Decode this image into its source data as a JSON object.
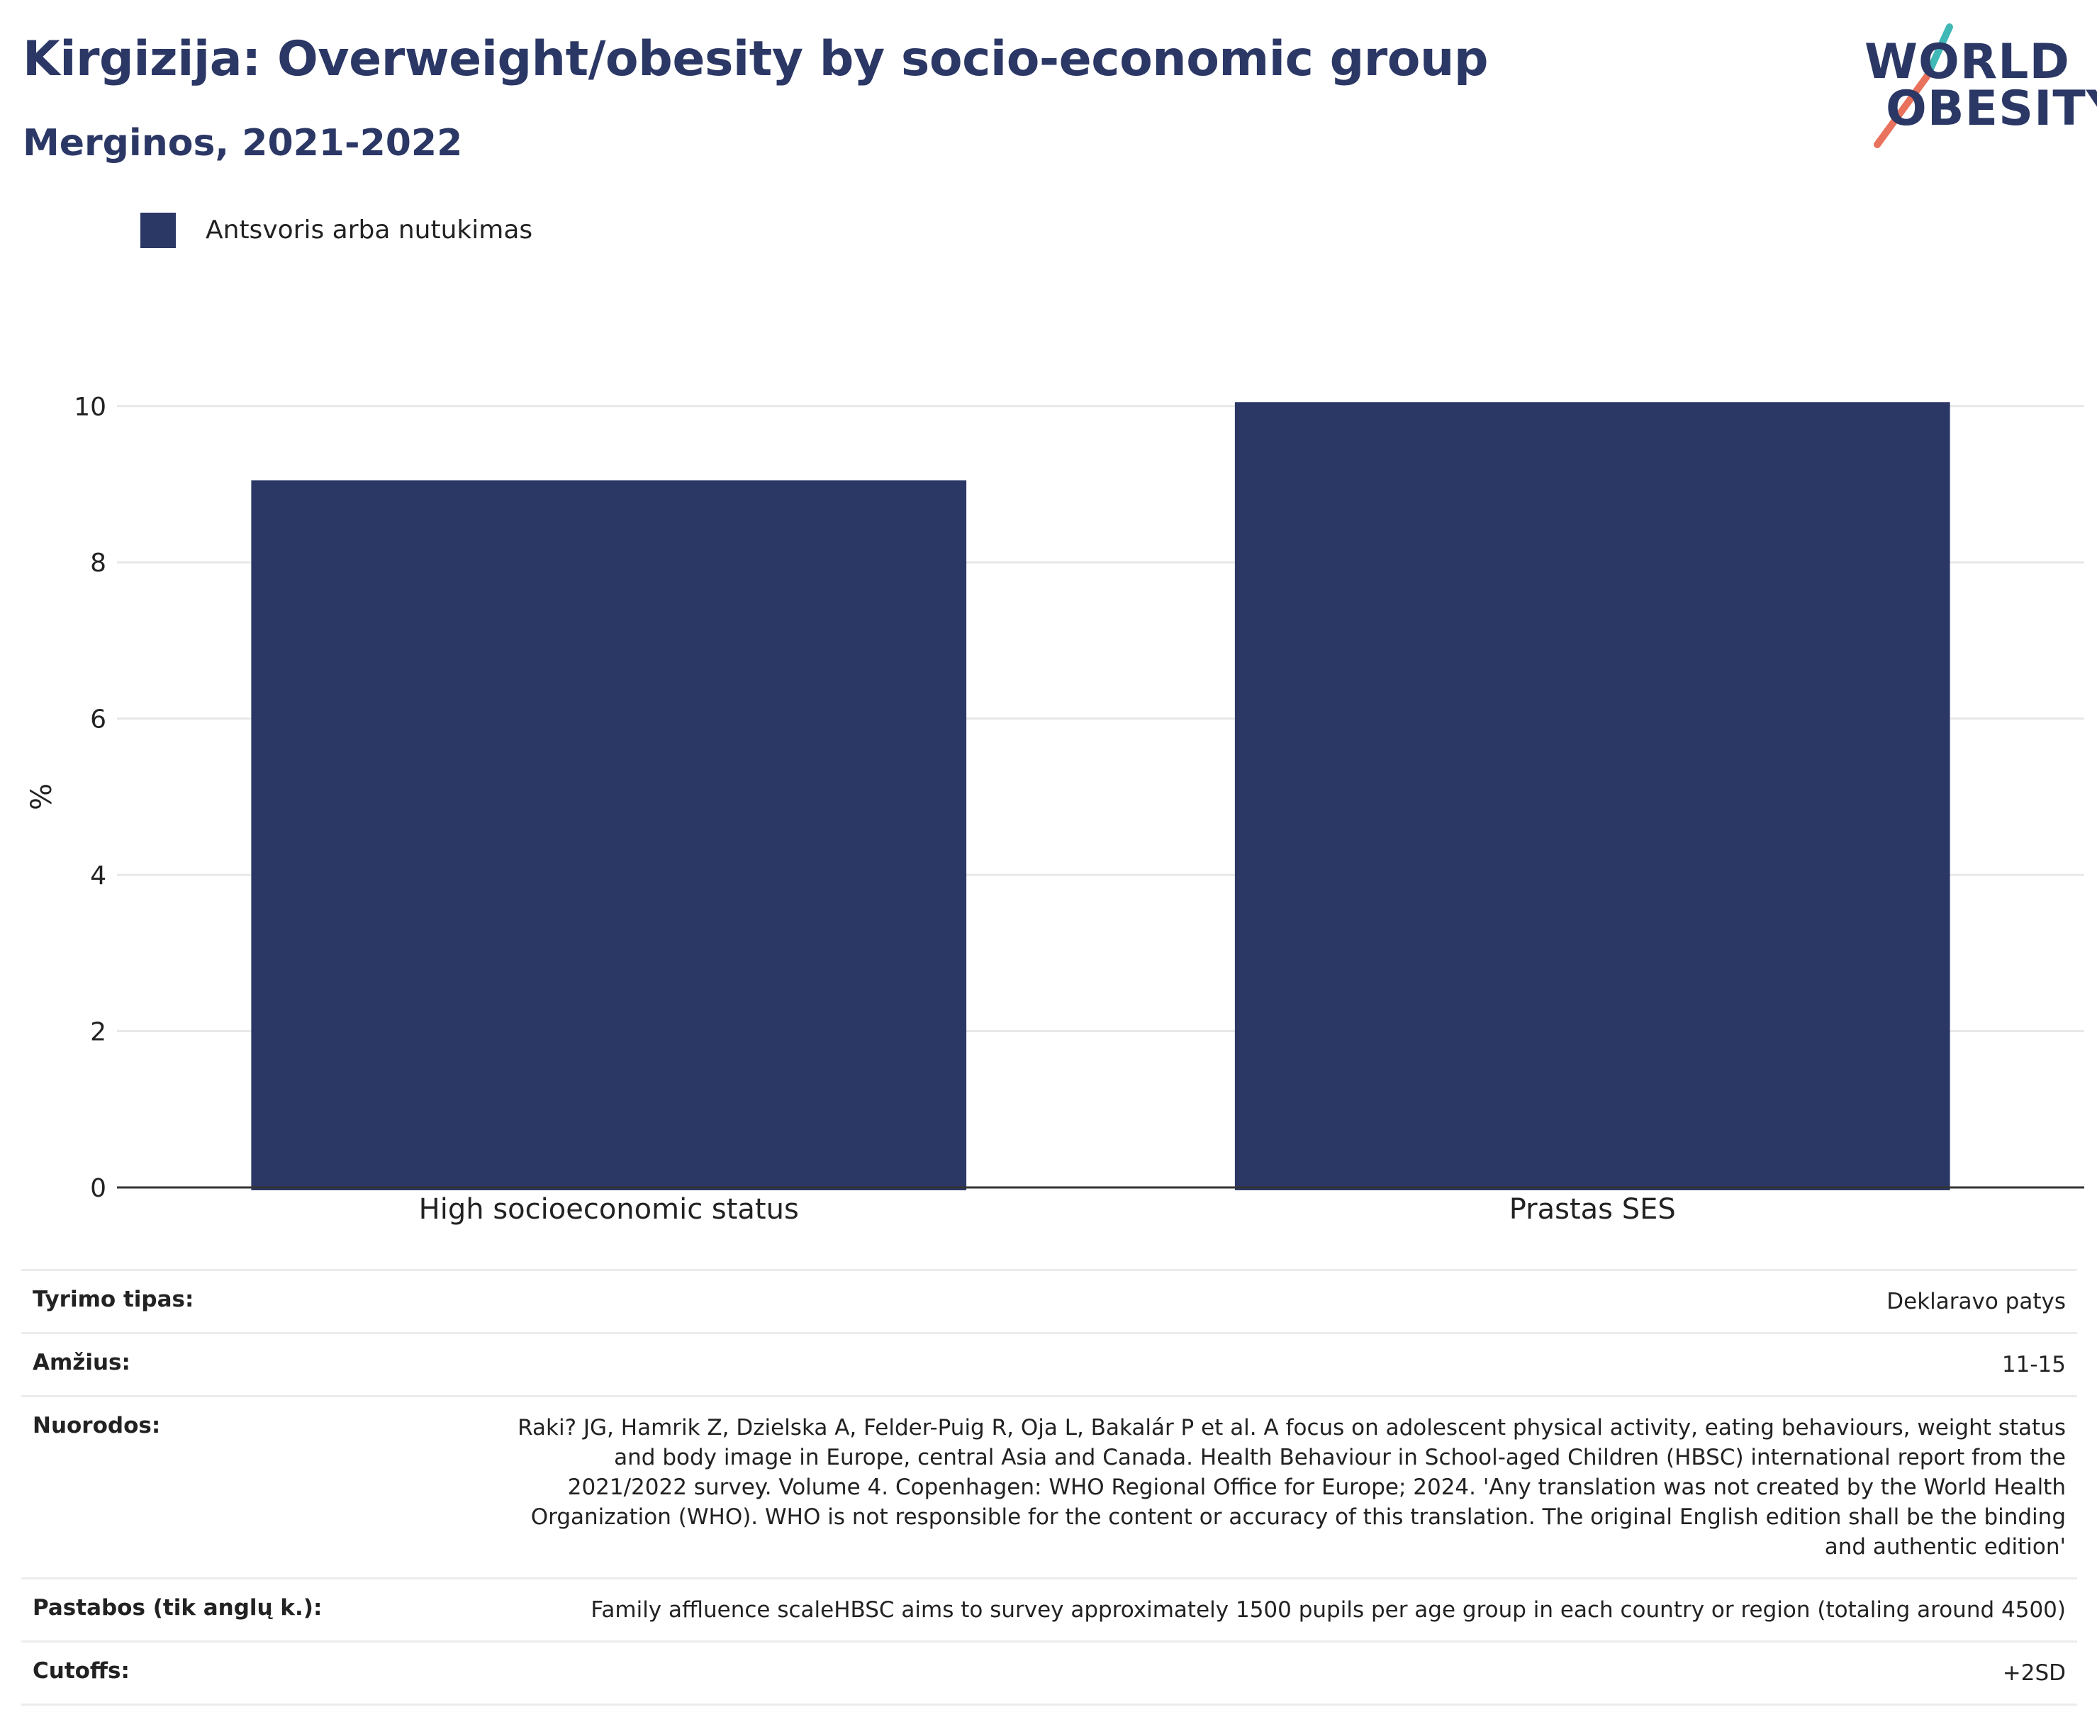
{
  "header": {
    "title": "Kirgizija: Overweight/obesity by socio-economic group",
    "subtitle": "Merginos, 2021-2022"
  },
  "logo": {
    "line1": "WORLD",
    "line2": "OBESITY"
  },
  "colors": {
    "bar": "#2b3765",
    "logo_teal": "#3fb8b6",
    "logo_coral": "#e9725c"
  },
  "chart_data": {
    "type": "bar",
    "categories": [
      "High socioeconomic status",
      "Prastas SES"
    ],
    "series": [
      {
        "name": "Antsvoris arba nutukimas",
        "values": [
          9.05,
          10.05
        ]
      }
    ],
    "ylabel": "%",
    "ylim": [
      0,
      10.7
    ],
    "yticks": [
      0,
      2,
      4,
      6,
      8,
      10
    ],
    "grid": true,
    "legend_position": "top-left"
  },
  "info": [
    {
      "key": "Tyrimo tipas:",
      "value": "Deklaravo patys"
    },
    {
      "key": "Amžius:",
      "value": "11-15"
    },
    {
      "key": "Nuorodos:",
      "value": "Raki? JG, Hamrik Z, Dzielska A, Felder-Puig R, Oja L, Bakalár P et al. A focus on adolescent physical activity, eating behaviours, weight status and body image in Europe, central Asia and Canada. Health Behaviour in School-aged Children (HBSC) international report from the 2021/2022 survey. Volume 4. Copenhagen: WHO Regional Office for Europe; 2024. 'Any translation was not created by the World Health Organization (WHO). WHO is not responsible for the content or accuracy of this translation. The original English edition shall be the binding and authentic edition'"
    },
    {
      "key": "Pastabos (tik anglų k.):",
      "value": "Family affluence scaleHBSC aims to survey approximately 1500 pupils per age group in each country or region (totaling around 4500)"
    },
    {
      "key": "Cutoffs:",
      "value": "+2SD"
    }
  ]
}
